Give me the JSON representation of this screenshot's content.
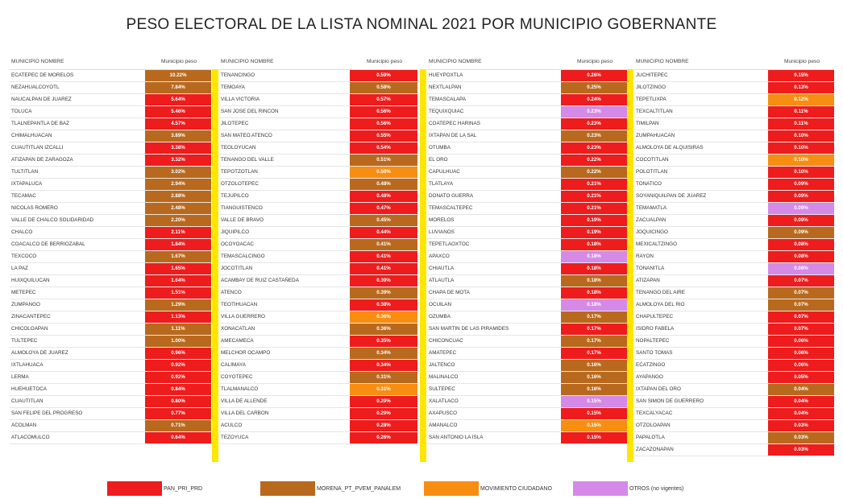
{
  "title": "PESO ELECTORAL DE LA LISTA NOMINAL 2021 POR MUNICIPIO GOBERNANTE",
  "colors": {
    "PAN": "#ee1c1c",
    "MOR": "#b9691d",
    "MC": "#f88e11",
    "OTR": "#d48ae6"
  },
  "header": {
    "name": "MUNICIPIO NOMBRE",
    "value": "Municipio peso"
  },
  "columns": [
    {
      "rows": [
        {
          "name": "ECATEPEC DE MORELOS",
          "value": "10.22%",
          "party": "MOR"
        },
        {
          "name": "NEZAHUALCOYOTL",
          "value": "7.84%",
          "party": "MOR"
        },
        {
          "name": "NAUCALPAN DE JUAREZ",
          "value": "5.64%",
          "party": "PAN"
        },
        {
          "name": "TOLUCA",
          "value": "5.46%",
          "party": "PAN"
        },
        {
          "name": "TLALNEPANTLA DE BAZ",
          "value": "4.57%",
          "party": "PAN"
        },
        {
          "name": "CHIMALHUACAN",
          "value": "3.89%",
          "party": "MOR"
        },
        {
          "name": "CUAUTITLAN IZCALLI",
          "value": "3.38%",
          "party": "PAN"
        },
        {
          "name": "ATIZAPAN DE ZARAGOZA",
          "value": "3.32%",
          "party": "PAN"
        },
        {
          "name": "TULTITLAN",
          "value": "3.02%",
          "party": "MOR"
        },
        {
          "name": "IXTAPALUCA",
          "value": "2.94%",
          "party": "MOR"
        },
        {
          "name": "TECAMAC",
          "value": "2.88%",
          "party": "MOR"
        },
        {
          "name": "NICOLAS ROMERO",
          "value": "2.48%",
          "party": "MOR"
        },
        {
          "name": "VALLE DE CHALCO SOLIDARIDAD",
          "value": "2.20%",
          "party": "MOR"
        },
        {
          "name": "CHALCO",
          "value": "2.11%",
          "party": "PAN"
        },
        {
          "name": "COACALCO DE BERRIOZABAL",
          "value": "1.84%",
          "party": "PAN"
        },
        {
          "name": "TEXCOCO",
          "value": "1.67%",
          "party": "MOR"
        },
        {
          "name": "LA PAZ",
          "value": "1.65%",
          "party": "PAN"
        },
        {
          "name": "HUIXQUILUCAN",
          "value": "1.64%",
          "party": "PAN"
        },
        {
          "name": "METEPEC",
          "value": "1.51%",
          "party": "PAN"
        },
        {
          "name": "ZUMPANGO",
          "value": "1.29%",
          "party": "MOR"
        },
        {
          "name": "ZINACANTEPEC",
          "value": "1.13%",
          "party": "PAN"
        },
        {
          "name": "CHICOLOAPAN",
          "value": "1.11%",
          "party": "MOR"
        },
        {
          "name": "TULTEPEC",
          "value": "1.00%",
          "party": "MOR"
        },
        {
          "name": "ALMOLOYA DE JUAREZ",
          "value": "0.96%",
          "party": "PAN"
        },
        {
          "name": "IXTLAHUACA",
          "value": "0.92%",
          "party": "PAN"
        },
        {
          "name": "LERMA",
          "value": "0.92%",
          "party": "PAN"
        },
        {
          "name": "HUEHUETOCA",
          "value": "0.84%",
          "party": "PAN"
        },
        {
          "name": "CUAUTITLAN",
          "value": "0.80%",
          "party": "PAN"
        },
        {
          "name": "SAN FELIPE DEL PROGRESO",
          "value": "0.77%",
          "party": "PAN"
        },
        {
          "name": "ACOLMAN",
          "value": "0.71%",
          "party": "MOR"
        },
        {
          "name": "ATLACOMULCO",
          "value": "0.64%",
          "party": "PAN"
        }
      ]
    },
    {
      "rows": [
        {
          "name": "TENANCINGO",
          "value": "0.59%",
          "party": "PAN"
        },
        {
          "name": "TEMOAYA",
          "value": "0.58%",
          "party": "MOR"
        },
        {
          "name": "VILLA VICTORIA",
          "value": "0.57%",
          "party": "PAN"
        },
        {
          "name": "SAN JOSE DEL RINCON",
          "value": "0.56%",
          "party": "PAN"
        },
        {
          "name": "JILOTEPEC",
          "value": "0.56%",
          "party": "PAN"
        },
        {
          "name": "SAN MATEO ATENCO",
          "value": "0.55%",
          "party": "PAN"
        },
        {
          "name": "TEOLOYUCAN",
          "value": "0.54%",
          "party": "PAN"
        },
        {
          "name": "TENANGO DEL VALLE",
          "value": "0.51%",
          "party": "MOR"
        },
        {
          "name": "TEPOTZOTLAN",
          "value": "0.50%",
          "party": "MC"
        },
        {
          "name": "OTZOLOTEPEC",
          "value": "0.48%",
          "party": "MOR"
        },
        {
          "name": "TEJUPILCO",
          "value": "0.48%",
          "party": "PAN"
        },
        {
          "name": "TIANGUISTENCO",
          "value": "0.47%",
          "party": "PAN"
        },
        {
          "name": "VALLE DE BRAVO",
          "value": "0.45%",
          "party": "MOR"
        },
        {
          "name": "JIQUIPILCO",
          "value": "0.44%",
          "party": "PAN"
        },
        {
          "name": "OCOYOACAC",
          "value": "0.41%",
          "party": "MOR"
        },
        {
          "name": "TEMASCALCINGO",
          "value": "0.41%",
          "party": "PAN"
        },
        {
          "name": "JOCOTITLAN",
          "value": "0.41%",
          "party": "PAN"
        },
        {
          "name": "ACAMBAY DE RUIZ CASTAÑEDA",
          "value": "0.39%",
          "party": "PAN"
        },
        {
          "name": "ATENCO",
          "value": "0.39%",
          "party": "MOR"
        },
        {
          "name": "TEOTIHUACAN",
          "value": "0.38%",
          "party": "PAN"
        },
        {
          "name": "VILLA GUERRERO",
          "value": "0.36%",
          "party": "MC"
        },
        {
          "name": "XONACATLAN",
          "value": "0.36%",
          "party": "MOR"
        },
        {
          "name": "AMECAMECA",
          "value": "0.35%",
          "party": "PAN"
        },
        {
          "name": "MELCHOR OCAMPO",
          "value": "0.34%",
          "party": "MOR"
        },
        {
          "name": "CALIMAYA",
          "value": "0.34%",
          "party": "PAN"
        },
        {
          "name": "COYOTEPEC",
          "value": "0.31%",
          "party": "MOR"
        },
        {
          "name": "TLALMANALCO",
          "value": "0.31%",
          "party": "MC"
        },
        {
          "name": "VILLA DE ALLENDE",
          "value": "0.29%",
          "party": "PAN"
        },
        {
          "name": "VILLA DEL CARBON",
          "value": "0.29%",
          "party": "PAN"
        },
        {
          "name": "ACULCO",
          "value": "0.28%",
          "party": "PAN"
        },
        {
          "name": "TEZOYUCA",
          "value": "0.26%",
          "party": "PAN"
        }
      ]
    },
    {
      "rows": [
        {
          "name": "HUEYPOXTLA",
          "value": "0.26%",
          "party": "PAN"
        },
        {
          "name": "NEXTLALPAN",
          "value": "0.25%",
          "party": "MOR"
        },
        {
          "name": "TEMASCALAPA",
          "value": "0.24%",
          "party": "PAN"
        },
        {
          "name": "TEQUIXQUIAC",
          "value": "0.23%",
          "party": "OTR"
        },
        {
          "name": "COATEPEC HARINAS",
          "value": "0.23%",
          "party": "PAN"
        },
        {
          "name": "IXTAPAN DE LA SAL",
          "value": "0.23%",
          "party": "MOR"
        },
        {
          "name": "OTUMBA",
          "value": "0.23%",
          "party": "PAN"
        },
        {
          "name": "EL ORO",
          "value": "0.22%",
          "party": "PAN"
        },
        {
          "name": "CAPULHUAC",
          "value": "0.22%",
          "party": "MOR"
        },
        {
          "name": "TLATLAYA",
          "value": "0.21%",
          "party": "PAN"
        },
        {
          "name": "DONATO GUERRA",
          "value": "0.21%",
          "party": "PAN"
        },
        {
          "name": "TEMASCALTEPEC",
          "value": "0.21%",
          "party": "PAN"
        },
        {
          "name": "MORELOS",
          "value": "0.19%",
          "party": "PAN"
        },
        {
          "name": "LUVIANOS",
          "value": "0.19%",
          "party": "PAN"
        },
        {
          "name": "TEPETLAOXTOC",
          "value": "0.18%",
          "party": "PAN"
        },
        {
          "name": "APAXCO",
          "value": "0.18%",
          "party": "OTR"
        },
        {
          "name": "CHIAUTLA",
          "value": "0.18%",
          "party": "PAN"
        },
        {
          "name": "ATLAUTLA",
          "value": "0.18%",
          "party": "MOR"
        },
        {
          "name": "CHAPA DE MOTA",
          "value": "0.18%",
          "party": "PAN"
        },
        {
          "name": "OCUILAN",
          "value": "0.18%",
          "party": "OTR"
        },
        {
          "name": "OZUMBA",
          "value": "0.17%",
          "party": "MOR"
        },
        {
          "name": "SAN MARTIN DE LAS PIRAMIDES",
          "value": "0.17%",
          "party": "PAN"
        },
        {
          "name": "CHICONCUAC",
          "value": "0.17%",
          "party": "MOR"
        },
        {
          "name": "AMATEPEC",
          "value": "0.17%",
          "party": "PAN"
        },
        {
          "name": "JALTENCO",
          "value": "0.16%",
          "party": "MOR"
        },
        {
          "name": "MALINALCO",
          "value": "0.16%",
          "party": "MOR"
        },
        {
          "name": "SULTEPEC",
          "value": "0.16%",
          "party": "MOR"
        },
        {
          "name": "XALATLACO",
          "value": "0.15%",
          "party": "OTR"
        },
        {
          "name": "AXAPUSCO",
          "value": "0.15%",
          "party": "PAN"
        },
        {
          "name": "AMANALCO",
          "value": "0.15%",
          "party": "MC"
        },
        {
          "name": "SAN ANTONIO LA ISLA",
          "value": "0.15%",
          "party": "PAN"
        }
      ]
    },
    {
      "rows": [
        {
          "name": "JUCHITEPEC",
          "value": "0.15%",
          "party": "PAN"
        },
        {
          "name": "JILOTZINGO",
          "value": "0.13%",
          "party": "PAN"
        },
        {
          "name": "TEPETLIXPA",
          "value": "0.12%",
          "party": "MC"
        },
        {
          "name": "TEXCALTITLAN",
          "value": "0.11%",
          "party": "PAN"
        },
        {
          "name": "TIMILPAN",
          "value": "0.11%",
          "party": "PAN"
        },
        {
          "name": "ZUMPAHUACAN",
          "value": "0.10%",
          "party": "PAN"
        },
        {
          "name": "ALMOLOYA DE ALQUISIRAS",
          "value": "0.10%",
          "party": "PAN"
        },
        {
          "name": "COCOTITLAN",
          "value": "0.10%",
          "party": "MC"
        },
        {
          "name": "POLOTITLAN",
          "value": "0.10%",
          "party": "PAN"
        },
        {
          "name": "TONATICO",
          "value": "0.09%",
          "party": "PAN"
        },
        {
          "name": "SOYANIQUILPAN DE JUAREZ",
          "value": "0.09%",
          "party": "PAN"
        },
        {
          "name": "TEMAMATLA",
          "value": "0.09%",
          "party": "OTR"
        },
        {
          "name": "ZACUALPAN",
          "value": "0.09%",
          "party": "PAN"
        },
        {
          "name": "JOQUICINGO",
          "value": "0.09%",
          "party": "MOR"
        },
        {
          "name": "MEXICALTZINGO",
          "value": "0.08%",
          "party": "PAN"
        },
        {
          "name": "RAYON",
          "value": "0.08%",
          "party": "PAN"
        },
        {
          "name": "TONANITLA",
          "value": "0.08%",
          "party": "OTR"
        },
        {
          "name": "ATIZAPAN",
          "value": "0.07%",
          "party": "PAN"
        },
        {
          "name": "TENANGO DEL AIRE",
          "value": "0.07%",
          "party": "MOR"
        },
        {
          "name": "ALMOLOYA DEL RIO",
          "value": "0.07%",
          "party": "MOR"
        },
        {
          "name": "CHAPULTEPEC",
          "value": "0.07%",
          "party": "PAN"
        },
        {
          "name": "ISIDRO FABELA",
          "value": "0.07%",
          "party": "PAN"
        },
        {
          "name": "NOPALTEPEC",
          "value": "0.06%",
          "party": "PAN"
        },
        {
          "name": "SANTO TOMAS",
          "value": "0.06%",
          "party": "PAN"
        },
        {
          "name": "ECATZINGO",
          "value": "0.06%",
          "party": "PAN"
        },
        {
          "name": "AYAPANGO",
          "value": "0.05%",
          "party": "PAN"
        },
        {
          "name": "IXTAPAN DEL ORO",
          "value": "0.04%",
          "party": "MOR"
        },
        {
          "name": "SAN SIMON DE GUERRERO",
          "value": "0.04%",
          "party": "PAN"
        },
        {
          "name": "TEXCALYACAC",
          "value": "0.04%",
          "party": "PAN"
        },
        {
          "name": "OTZOLOAPAN",
          "value": "0.03%",
          "party": "PAN"
        },
        {
          "name": "PAPALOTLA",
          "value": "0.03%",
          "party": "MOR"
        },
        {
          "name": "ZACAZONAPAN",
          "value": "0.03%",
          "party": "PAN"
        }
      ]
    }
  ],
  "legend": [
    {
      "label": "PAN_PRI_PRD",
      "party": "PAN"
    },
    {
      "label": "MORENA_PT_PVEM_PANALEM",
      "party": "MOR"
    },
    {
      "label": "MOVIMIENTO CIUDADANO",
      "party": "MC"
    },
    {
      "label": "OTROS (no vigentes)",
      "party": "OTR"
    }
  ]
}
